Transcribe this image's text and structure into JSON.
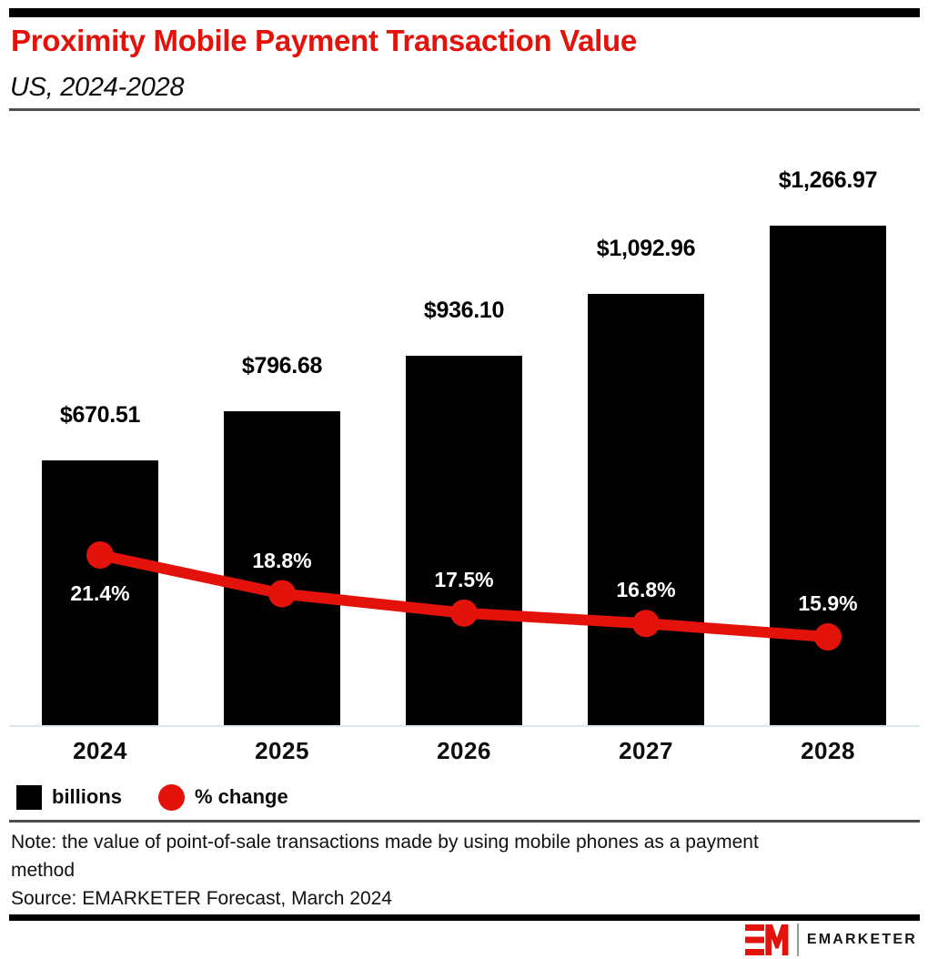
{
  "header": {
    "title": "Proximity Mobile Payment Transaction Value",
    "subtitle": "US, 2024-2028",
    "accent_color": "#e3120b"
  },
  "chart_data": {
    "type": "bar",
    "title": "Proximity Mobile Payment Transaction Value",
    "subtitle": "US, 2024-2028",
    "categories": [
      "2024",
      "2025",
      "2026",
      "2027",
      "2028"
    ],
    "series": [
      {
        "name": "billions",
        "type": "bar",
        "color": "#000000",
        "values": [
          670.51,
          796.68,
          936.1,
          1092.96,
          1266.97
        ],
        "labels": [
          "$670.51",
          "$796.68",
          "$936.10",
          "$1,092.96",
          "$1,266.97"
        ]
      },
      {
        "name": "% change",
        "type": "line",
        "color": "#e3120b",
        "values": [
          21.4,
          18.8,
          17.5,
          16.8,
          15.9
        ],
        "labels": [
          "21.4%",
          "18.8%",
          "17.5%",
          "16.8%",
          "15.9%"
        ]
      }
    ],
    "xlabel": "",
    "ylabel": "",
    "grid": false,
    "legend_position": "bottom",
    "value_label_color": "#000000",
    "pct_label_color": "#ffffff",
    "axis_line_color": "#dde4f2"
  },
  "legend": {
    "items": [
      {
        "label": "billions",
        "swatch": "square",
        "color": "#000000"
      },
      {
        "label": "% change",
        "swatch": "circle",
        "color": "#e3120b"
      }
    ]
  },
  "footer": {
    "note": "Note: the value of point-of-sale transactions made by using mobile phones as a payment\nmethod",
    "source": "Source: EMARKETER Forecast, March 2024"
  },
  "branding": {
    "logo_text": "EMARKETER"
  }
}
